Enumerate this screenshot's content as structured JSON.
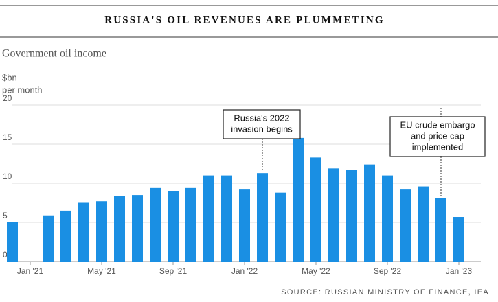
{
  "chart_data": {
    "type": "bar",
    "title": "RUSSIA'S OIL REVENUES ARE PLUMMETING",
    "subtitle": "Government oil income",
    "y_label": [
      "$bn",
      "per month"
    ],
    "source": "SOURCE: RUSSIAN MINISTRY OF FINANCE, IEA",
    "categories": [
      null,
      "Jan '21",
      null,
      null,
      null,
      "May '21",
      null,
      null,
      null,
      "Sep '21",
      null,
      null,
      null,
      "Jan '22",
      null,
      null,
      null,
      "May '22",
      null,
      null,
      null,
      "Sep '22",
      null,
      null,
      null,
      "Jan '23"
    ],
    "values": [
      5.0,
      null,
      5.9,
      6.5,
      7.5,
      7.7,
      8.4,
      8.5,
      9.4,
      9.0,
      9.4,
      11.0,
      11.0,
      9.2,
      11.3,
      8.8,
      15.8,
      13.3,
      11.9,
      11.7,
      12.4,
      11.0,
      9.2,
      9.6,
      8.1,
      5.7
    ],
    "color": "#1a8fe3",
    "ylim": [
      0,
      20
    ],
    "yticks": [
      0,
      5,
      10,
      15,
      20
    ],
    "grid": true,
    "annotations": [
      [
        "Russia's 2022",
        "invasion begins"
      ],
      [
        "EU crude embargo",
        "and price cap",
        "implemented"
      ]
    ]
  }
}
